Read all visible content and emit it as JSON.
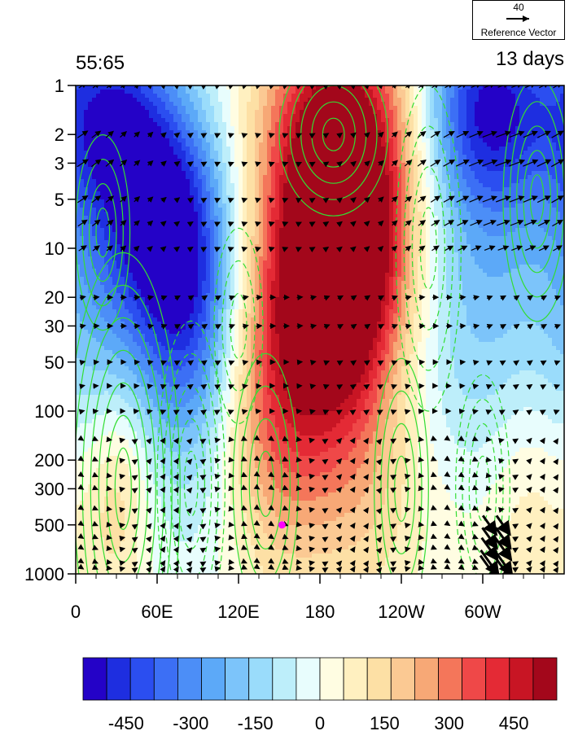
{
  "chart_data": {
    "type": "heatmap",
    "title_left": "55:65",
    "title_right": "13 days",
    "x_ticks": [
      "0",
      "60E",
      "120E",
      "180",
      "120W",
      "60W"
    ],
    "x_tick_longitudes": [
      0,
      60,
      120,
      180,
      240,
      300
    ],
    "xlim": [
      0,
      360
    ],
    "y_ticks": [
      "1",
      "2",
      "3",
      "5",
      "10",
      "20",
      "30",
      "50",
      "100",
      "200",
      "300",
      "500",
      "1000"
    ],
    "y_tick_values": [
      1,
      2,
      3,
      5,
      10,
      20,
      30,
      50,
      100,
      200,
      300,
      500,
      1000
    ],
    "ylim": [
      1000,
      1
    ],
    "y_scale": "log",
    "colorbar_labels": [
      "-450",
      "-300",
      "-150",
      "0",
      "150",
      "300",
      "450"
    ],
    "colorbar_label_values": [
      -450,
      -300,
      -150,
      0,
      150,
      300,
      450
    ],
    "colorbar_range": [
      -550,
      550
    ],
    "colorbar_colors": [
      "#2402c7",
      "#1e2ee0",
      "#2b4ef0",
      "#3c6ff5",
      "#4c8ef7",
      "#5ca9f8",
      "#7cc4fa",
      "#9adcfb",
      "#bdeefa",
      "#e8fdfd",
      "#fffde2",
      "#fff0c0",
      "#fde0a5",
      "#fbc993",
      "#f7a876",
      "#f4765a",
      "#ef4848",
      "#e42a35",
      "#c81524",
      "#a3071b"
    ],
    "reference_vector": {
      "magnitude": "40",
      "label": "Reference Vector"
    },
    "marker": {
      "longitude": 152,
      "pressure": 500,
      "color": "#ff00ff"
    },
    "shading_centers": [
      {
        "lon": 195,
        "p": 2,
        "value": 560,
        "sx": 40,
        "sy": 0.55
      },
      {
        "lon": 200,
        "p": 12,
        "value": 480,
        "sx": 32,
        "sy": 0.5
      },
      {
        "lon": 175,
        "p": 35,
        "value": 380,
        "sx": 38,
        "sy": 0.6
      },
      {
        "lon": 140,
        "p": 200,
        "value": 220,
        "sx": 30,
        "sy": 0.7
      },
      {
        "lon": 215,
        "p": 150,
        "value": 200,
        "sx": 35,
        "sy": 0.7
      },
      {
        "lon": 25,
        "p": 1.5,
        "value": -380,
        "sx": 28,
        "sy": 0.5
      },
      {
        "lon": 65,
        "p": 6,
        "value": -460,
        "sx": 30,
        "sy": 0.55
      },
      {
        "lon": 85,
        "p": 30,
        "value": -330,
        "sx": 28,
        "sy": 0.6
      },
      {
        "lon": 15,
        "p": 40,
        "value": -180,
        "sx": 30,
        "sy": 0.8
      },
      {
        "lon": 305,
        "p": 1.3,
        "value": -430,
        "sx": 35,
        "sy": 0.45
      },
      {
        "lon": 305,
        "p": 12,
        "value": -180,
        "sx": 35,
        "sy": 0.9
      },
      {
        "lon": 235,
        "p": 80,
        "value": -120,
        "sx": 40,
        "sy": 0.9
      },
      {
        "lon": 115,
        "p": 400,
        "value": -90,
        "sx": 35,
        "sy": 0.6
      },
      {
        "lon": 30,
        "p": 300,
        "value": 200,
        "sx": 18,
        "sy": 0.5
      },
      {
        "lon": 240,
        "p": 600,
        "value": 60,
        "sx": 60,
        "sy": 0.5
      },
      {
        "lon": 340,
        "p": 350,
        "value": 120,
        "sx": 25,
        "sy": 0.7
      }
    ],
    "colors": {
      "contour": "#33dd33",
      "vector": "#000000",
      "frame": "#000000"
    }
  }
}
